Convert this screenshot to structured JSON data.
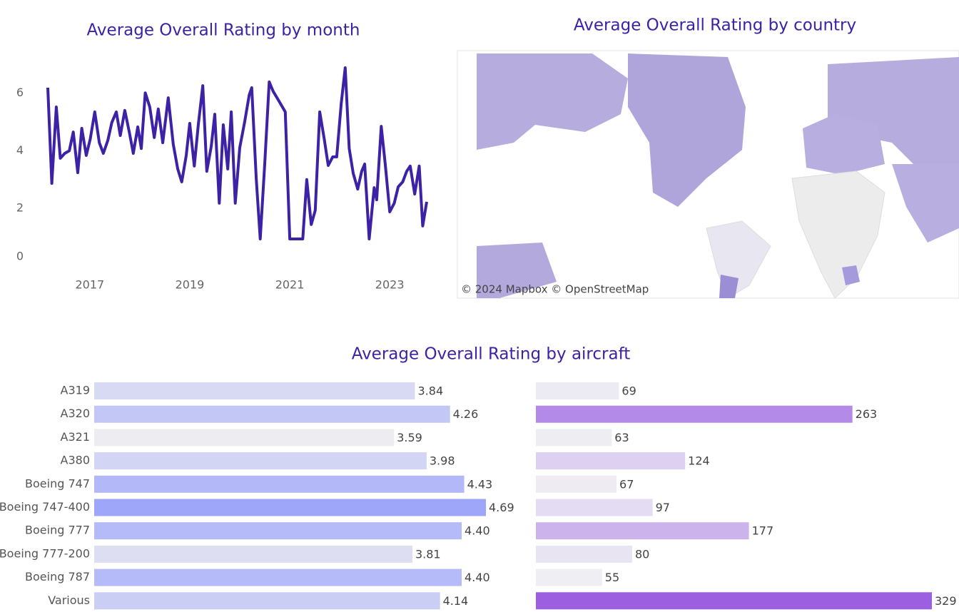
{
  "chart_data": [
    {
      "type": "line",
      "title": "Average Overall Rating by month",
      "color": "#3d22a6",
      "x": [
        2016.16,
        2016.24,
        2016.33,
        2016.41,
        2016.5,
        2016.59,
        2016.67,
        2016.76,
        2016.84,
        2016.93,
        2017.01,
        2017.1,
        2017.19,
        2017.27,
        2017.36,
        2017.44,
        2017.53,
        2017.61,
        2017.7,
        2017.79,
        2017.87,
        2017.96,
        2018.03,
        2018.11,
        2018.2,
        2018.29,
        2018.37,
        2018.46,
        2018.57,
        2018.67,
        2018.76,
        2018.84,
        2018.93,
        2019.0,
        2019.09,
        2019.17,
        2019.26,
        2019.34,
        2019.43,
        2019.5,
        2019.59,
        2019.67,
        2019.76,
        2019.83,
        2019.91,
        2020.0,
        2020.1,
        2020.19,
        2020.24,
        2020.33,
        2020.41,
        2020.5,
        2020.59,
        2020.67,
        2020.77,
        2020.91,
        2021.0,
        2021.26,
        2021.34,
        2021.43,
        2021.51,
        2021.6,
        2021.69,
        2021.77,
        2021.86,
        2021.94,
        2022.03,
        2022.11,
        2022.19,
        2022.27,
        2022.36,
        2022.44,
        2022.5,
        2022.59,
        2022.69,
        2022.74,
        2022.83,
        2022.91,
        2023.0,
        2023.09,
        2023.17,
        2023.26,
        2023.34,
        2023.41,
        2023.5,
        2023.59,
        2023.66,
        2023.74
      ],
      "values": [
        6.19,
        2.87,
        5.52,
        3.74,
        3.91,
        4.0,
        4.65,
        3.24,
        4.78,
        3.84,
        4.41,
        5.35,
        4.28,
        3.91,
        4.36,
        4.98,
        5.35,
        4.53,
        5.4,
        4.65,
        3.91,
        4.83,
        4.08,
        6.01,
        5.52,
        4.46,
        5.45,
        4.28,
        5.84,
        4.23,
        3.37,
        2.92,
        3.84,
        4.95,
        3.47,
        4.9,
        6.26,
        3.29,
        4.16,
        5.27,
        2.18,
        4.9,
        3.37,
        5.35,
        2.18,
        4.11,
        5.02,
        5.94,
        6.19,
        3.04,
        0.94,
        3.54,
        6.39,
        6.06,
        5.77,
        5.35,
        0.94,
        0.94,
        3.0,
        1.44,
        1.93,
        5.35,
        4.41,
        3.49,
        3.79,
        3.79,
        5.64,
        6.88,
        4.08,
        3.22,
        2.67,
        3.29,
        3.54,
        0.94,
        2.72,
        2.3,
        4.85,
        3.54,
        1.88,
        2.18,
        2.75,
        2.92,
        3.29,
        3.47,
        2.5,
        3.47,
        1.39,
        2.23
      ],
      "xlim": [
        2016.16,
        2023.74
      ],
      "xticks": [
        2017,
        2019,
        2021,
        2023
      ],
      "ylim": [
        0,
        7.5
      ],
      "yticks": [
        0,
        2,
        4,
        6
      ]
    },
    {
      "type": "map",
      "title": "Average Overall Rating by country",
      "attribution": "© 2024 Mapbox © OpenStreetMap"
    },
    {
      "type": "bar",
      "title": "Average Overall Rating by aircraft",
      "categories": [
        "A319",
        "A320",
        "A321",
        "A380",
        "Boeing 747",
        "Boeing 747-400",
        "Boeing 777",
        "Boeing 777-200",
        "Boeing 787",
        "Various"
      ],
      "series": [
        {
          "values": [
            3.84,
            4.26,
            3.59,
            3.98,
            4.43,
            4.69,
            4.4,
            3.81,
            4.4,
            4.14
          ],
          "value_labels": [
            "3.84",
            "4.26",
            "3.59",
            "3.98",
            "4.43",
            "4.69",
            "4.40",
            "3.81",
            "4.40",
            "4.14"
          ],
          "colors": [
            "#d8daf3",
            "#c2c7f6",
            "#ededf1",
            "#d2d5f4",
            "#b2b8f8",
            "#9ea6fa",
            "#b4bbf8",
            "#dddef1",
            "#b4bbf8",
            "#cacef5"
          ]
        },
        {
          "values": [
            69,
            263,
            63,
            124,
            67,
            97,
            177,
            80,
            55,
            329
          ],
          "colors": [
            "#eceaf2",
            "#b48ae8",
            "#eeedf2",
            "#ddd0f0",
            "#eeecf2",
            "#e4dcf2",
            "#cdb3ec",
            "#e8e4f2",
            "#efeef3",
            "#9b5fe0"
          ]
        }
      ]
    }
  ]
}
